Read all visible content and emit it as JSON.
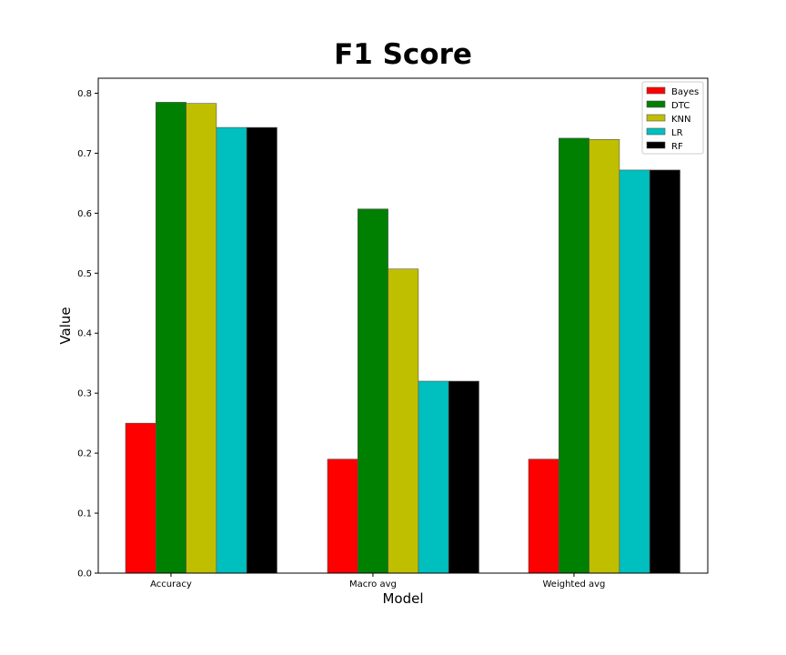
{
  "chart_data": {
    "type": "bar",
    "title": "F1 Score",
    "xlabel": "Model",
    "ylabel": "Value",
    "categories": [
      "Accuracy",
      "Macro avg",
      "Weighted avg"
    ],
    "ylim": [
      0,
      0.825
    ],
    "yticks": [
      "0.0",
      "0.1",
      "0.2",
      "0.3",
      "0.4",
      "0.5",
      "0.6",
      "0.7",
      "0.8"
    ],
    "grid": false,
    "legend_position": "top-right",
    "series": [
      {
        "name": "Bayes",
        "color": "#ff0000",
        "values": [
          0.25,
          0.19,
          0.19
        ]
      },
      {
        "name": "DTC",
        "color": "#008000",
        "values": [
          0.785,
          0.607,
          0.725
        ]
      },
      {
        "name": "KNN",
        "color": "#bfbf00",
        "values": [
          0.783,
          0.507,
          0.723
        ]
      },
      {
        "name": "LR",
        "color": "#00bfbf",
        "values": [
          0.743,
          0.32,
          0.672
        ]
      },
      {
        "name": "RF",
        "color": "#000000",
        "values": [
          0.743,
          0.32,
          0.672
        ]
      }
    ]
  }
}
